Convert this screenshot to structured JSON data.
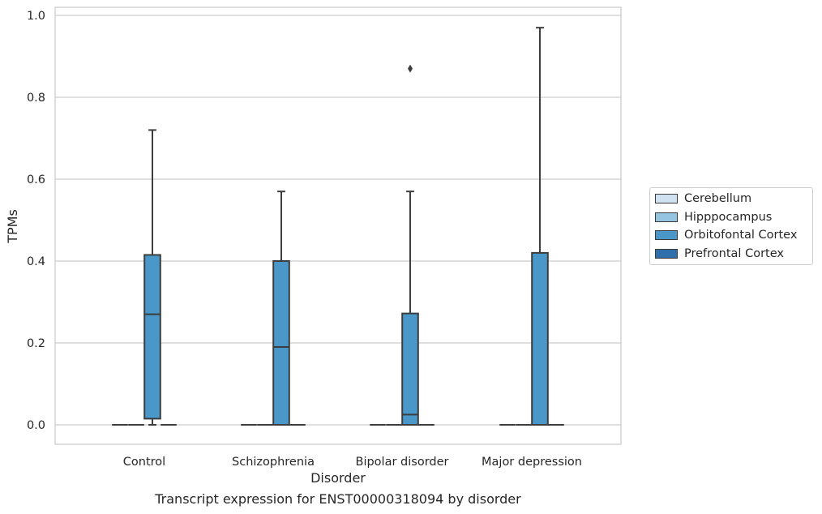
{
  "chart_data": {
    "type": "box",
    "xlabel": "Disorder",
    "ylabel": "TPMs",
    "caption": "Transcript expression for ENST00000318094 by disorder",
    "categories": [
      "Control",
      "Schizophrenia",
      "Bipolar disorder",
      "Major depression"
    ],
    "ylim": [
      -0.045,
      1.02
    ],
    "yticks": [
      0.0,
      0.2,
      0.4,
      0.6,
      0.8,
      1.0
    ],
    "ytick_labels": [
      "0.0",
      "0.2",
      "0.4",
      "0.6",
      "0.8",
      "1.0"
    ],
    "grid": true,
    "legend_position": "right",
    "series": [
      {
        "name": "Cerebellum",
        "color": "#d0e1f2",
        "boxes": [
          {
            "min": 0,
            "q1": 0,
            "median": 0,
            "q3": 0,
            "max": 0,
            "outliers": []
          },
          {
            "min": 0,
            "q1": 0,
            "median": 0,
            "q3": 0,
            "max": 0,
            "outliers": []
          },
          {
            "min": 0,
            "q1": 0,
            "median": 0,
            "q3": 0,
            "max": 0,
            "outliers": []
          },
          {
            "min": 0,
            "q1": 0,
            "median": 0,
            "q3": 0,
            "max": 0,
            "outliers": []
          }
        ]
      },
      {
        "name": "Hipppocampus",
        "color": "#94c4df",
        "boxes": [
          {
            "min": 0,
            "q1": 0,
            "median": 0,
            "q3": 0,
            "max": 0,
            "outliers": []
          },
          {
            "min": 0,
            "q1": 0,
            "median": 0,
            "q3": 0,
            "max": 0,
            "outliers": []
          },
          {
            "min": 0,
            "q1": 0,
            "median": 0,
            "q3": 0,
            "max": 0,
            "outliers": []
          },
          {
            "min": 0,
            "q1": 0,
            "median": 0,
            "q3": 0,
            "max": 0,
            "outliers": []
          }
        ]
      },
      {
        "name": "Orbitofontal Cortex",
        "color": "#4a98c9",
        "boxes": [
          {
            "min": 0.0,
            "q1": 0.015,
            "median": 0.27,
            "q3": 0.415,
            "max": 0.72,
            "outliers": []
          },
          {
            "min": 0.0,
            "q1": 0.0,
            "median": 0.19,
            "q3": 0.4,
            "max": 0.57,
            "outliers": []
          },
          {
            "min": 0.0,
            "q1": 0.0,
            "median": 0.025,
            "q3": 0.272,
            "max": 0.57,
            "outliers": [
              0.87
            ]
          },
          {
            "min": 0.0,
            "q1": 0.0,
            "median": 0.0,
            "q3": 0.42,
            "max": 0.97,
            "outliers": []
          }
        ]
      },
      {
        "name": "Prefrontal Cortex",
        "color": "#2e6fac",
        "boxes": [
          {
            "min": 0,
            "q1": 0,
            "median": 0,
            "q3": 0,
            "max": 0,
            "outliers": []
          },
          {
            "min": 0,
            "q1": 0,
            "median": 0,
            "q3": 0,
            "max": 0,
            "outliers": []
          },
          {
            "min": 0,
            "q1": 0,
            "median": 0,
            "q3": 0,
            "max": 0,
            "outliers": []
          },
          {
            "min": 0,
            "q1": 0,
            "median": 0,
            "q3": 0,
            "max": 0,
            "outliers": []
          }
        ]
      }
    ]
  },
  "legend": {
    "items": [
      {
        "label": "Cerebellum",
        "color": "#d0e1f2"
      },
      {
        "label": "Hipppocampus",
        "color": "#94c4df"
      },
      {
        "label": "Orbitofontal Cortex",
        "color": "#4a98c9"
      },
      {
        "label": "Prefrontal Cortex",
        "color": "#2e6fac"
      }
    ]
  }
}
